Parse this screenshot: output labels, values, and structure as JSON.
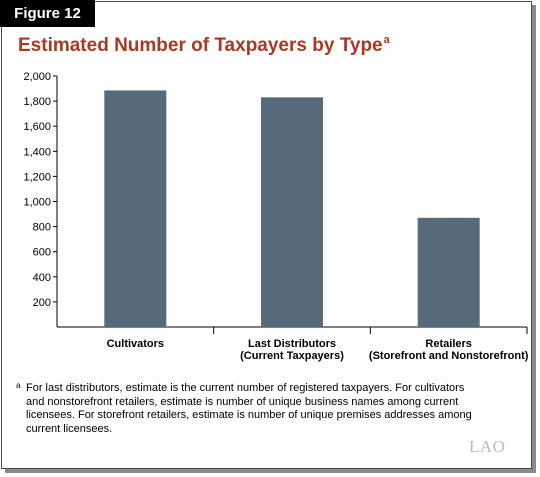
{
  "figure_label": "Figure 12",
  "title": "Estimated Number of Taxpayers by Type",
  "title_superscript": "a",
  "chart_data": {
    "type": "bar",
    "categories": [
      [
        "Cultivators"
      ],
      [
        "Last Distributors",
        "(Current Taxpayers)"
      ],
      [
        "Retailers",
        "(Storefront and Nonstorefront)"
      ]
    ],
    "values": [
      1885,
      1830,
      870
    ],
    "ylim": [
      0,
      2000
    ],
    "yticks": [
      200,
      400,
      600,
      800,
      1000,
      1200,
      1400,
      1600,
      1800,
      2000
    ],
    "ytick_labels": [
      "200",
      "400",
      "600",
      "800",
      "1,000",
      "1,200",
      "1,400",
      "1,600",
      "1,800",
      "2,000"
    ],
    "bar_color": "#566a7a",
    "grid": false,
    "xlabel": "",
    "ylabel": ""
  },
  "footnote": {
    "marker": "a",
    "lines": [
      "For last distributors, estimate is the current number of registered taxpayers. For cultivators",
      "and nonstorefront retailers, estimate is number of unique business names among current",
      "licensees. For storefront retailers, estimate is number of unique premises addresses among",
      "current licensees."
    ]
  },
  "logo_text": "LAO"
}
